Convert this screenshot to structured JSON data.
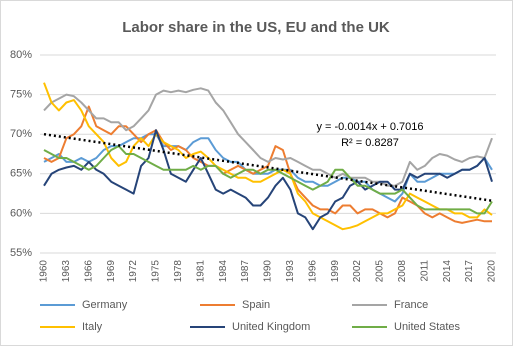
{
  "chart_data": {
    "type": "line",
    "title": "Labor share in the US, EU and the UK",
    "categories": [
      "1960",
      null,
      null,
      "1963",
      null,
      null,
      "1966",
      null,
      null,
      "1969",
      null,
      null,
      "1972",
      null,
      null,
      "1975",
      null,
      null,
      "1978",
      null,
      null,
      "1981",
      null,
      null,
      "1984",
      null,
      null,
      "1987",
      null,
      null,
      "1990",
      null,
      null,
      "1993",
      null,
      null,
      "1996",
      null,
      null,
      "1999",
      null,
      null,
      "2002",
      null,
      null,
      "2005",
      null,
      null,
      "2008",
      null,
      null,
      "2011",
      null,
      null,
      "2014",
      null,
      null,
      "2017",
      null,
      null,
      "2020"
    ],
    "ylim": [
      55,
      80
    ],
    "yticks": [
      {
        "value": 55,
        "label": "55%"
      },
      {
        "value": 60,
        "label": "60%"
      },
      {
        "value": 65,
        "label": "65%"
      },
      {
        "value": 70,
        "label": "70%"
      },
      {
        "value": 75,
        "label": "75%"
      },
      {
        "value": 80,
        "label": "80%"
      }
    ],
    "grid": true,
    "legend": "bottom",
    "series": [
      {
        "name": "Germany",
        "color": "#5b9bd5",
        "values": [
          66.5,
          67,
          67.5,
          66.5,
          66.5,
          67,
          66.5,
          67,
          68,
          68.5,
          68.5,
          69,
          69.5,
          69.5,
          70,
          70,
          68.5,
          68.5,
          68.5,
          68,
          69,
          69.5,
          69.5,
          68,
          67,
          66.5,
          66.5,
          65.5,
          65,
          65,
          65,
          65.5,
          65.5,
          65.5,
          64.5,
          64,
          64,
          63.5,
          63.5,
          64,
          64.5,
          64.5,
          64,
          64,
          63,
          62.5,
          62,
          61.5,
          62.5,
          65,
          64,
          64,
          64.5,
          65,
          65,
          65,
          65.5,
          65.5,
          66,
          67,
          65.5
        ]
      },
      {
        "name": "Spain",
        "color": "#ed7d31",
        "values": [
          67,
          66.5,
          67,
          69.5,
          70,
          71,
          73.5,
          71,
          70.5,
          70,
          71,
          71,
          70,
          69,
          70,
          70.5,
          69,
          68,
          68.5,
          68,
          67,
          66.5,
          66,
          66,
          65,
          65.5,
          66,
          65.5,
          65,
          65.5,
          66,
          68.5,
          68,
          65,
          63,
          62,
          61,
          60.5,
          60.5,
          60,
          61,
          61,
          60,
          60.5,
          60.5,
          60,
          59.5,
          60,
          62,
          61.5,
          61,
          60,
          59.5,
          60,
          59.5,
          59,
          58.8,
          59,
          59.2,
          59,
          59
        ]
      },
      {
        "name": "France",
        "color": "#a5a5a5",
        "values": [
          73,
          74,
          74.5,
          75,
          74.8,
          74,
          73,
          72,
          72,
          71.5,
          71.5,
          70.5,
          71,
          72,
          73,
          75,
          75.5,
          75.3,
          75.5,
          75.3,
          75.6,
          75.8,
          75.5,
          74,
          73,
          71.5,
          70,
          69,
          68,
          67,
          66.5,
          67,
          66.8,
          67,
          66.5,
          66,
          65.5,
          65.5,
          65,
          64.5,
          65,
          64.5,
          64.5,
          64.5,
          64,
          64,
          63.5,
          63.5,
          64,
          66.5,
          65.5,
          66,
          67,
          67.5,
          67.3,
          66.8,
          66.5,
          67,
          67.2,
          67,
          69.5
        ]
      },
      {
        "name": "Italy",
        "color": "#ffc000",
        "values": [
          76.5,
          74,
          73,
          74,
          74.3,
          73,
          71,
          70,
          69,
          67,
          66,
          66.5,
          68.5,
          69.5,
          68.5,
          70,
          69,
          68.5,
          68,
          67,
          67.5,
          67.8,
          67,
          66,
          65.5,
          65,
          64.5,
          64.5,
          64,
          64,
          64.5,
          65,
          65.5,
          65,
          62.5,
          61.5,
          60,
          59.5,
          59,
          58.5,
          58,
          58.2,
          58.5,
          59,
          59.5,
          60,
          60,
          60.5,
          61,
          62.5,
          62,
          61.5,
          61,
          60.5,
          60.5,
          60,
          60,
          59.5,
          59.5,
          60.5,
          59.8
        ]
      },
      {
        "name": "United Kingdom",
        "color": "#264478",
        "values": [
          63.5,
          65,
          65.5,
          65.8,
          66,
          65.5,
          66.5,
          65.5,
          65,
          64,
          63.5,
          63,
          62.5,
          66,
          67,
          70.5,
          68,
          65,
          64.5,
          64,
          65.5,
          67,
          65,
          63,
          62.5,
          63,
          62.5,
          62,
          61,
          61,
          62,
          63.5,
          64.5,
          63,
          60,
          59.5,
          58,
          59.5,
          60,
          61.5,
          62,
          63.5,
          64,
          63,
          63.5,
          64,
          64,
          63,
          63,
          65,
          64.5,
          65,
          65,
          65,
          64.5,
          65,
          65.5,
          65.5,
          66,
          67,
          64
        ]
      },
      {
        "name": "United States",
        "color": "#70ad47",
        "values": [
          68,
          67.5,
          67,
          67,
          66.5,
          66,
          65.5,
          66,
          67,
          68,
          68.5,
          67.5,
          67.5,
          67,
          66.5,
          66,
          65.5,
          65.5,
          65.5,
          65.5,
          66,
          65.5,
          66,
          66,
          65,
          64.5,
          65,
          65.5,
          65.5,
          65,
          65.5,
          65.5,
          65,
          64.5,
          64,
          63.5,
          63,
          63.5,
          64,
          65.5,
          65.5,
          64.5,
          63.5,
          63.5,
          63,
          62.5,
          62.5,
          62.5,
          63,
          62,
          61,
          60.5,
          60.5,
          60.5,
          60.5,
          60.5,
          60.5,
          60.5,
          60,
          60,
          61.5
        ]
      }
    ],
    "trendline": {
      "color": "#000000",
      "values": [
        70.0,
        61.6
      ]
    },
    "annotations": [
      "y = -0.0014x + 0.7016",
      "R² = 0.8287"
    ]
  }
}
